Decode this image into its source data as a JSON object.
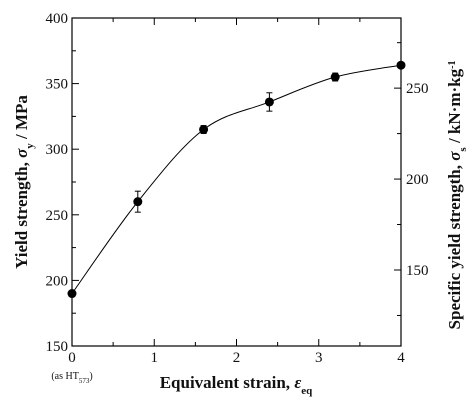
{
  "chart_data": {
    "type": "line",
    "x": [
      0,
      0.8,
      1.6,
      2.4,
      3.2,
      4.0
    ],
    "y": [
      190,
      260,
      315,
      336,
      355,
      364
    ],
    "y_error": [
      0,
      8,
      3,
      7,
      3,
      0
    ],
    "xlim": [
      0,
      4
    ],
    "ylim": [
      150,
      400
    ],
    "x_ticks": [
      "0",
      "1",
      "2",
      "3",
      "4"
    ],
    "y_ticks": [
      "150",
      "200",
      "250",
      "300",
      "350",
      "400"
    ],
    "y2_ticks": [
      "150",
      "200",
      "250"
    ],
    "y2_tick_values": [
      150,
      200,
      250
    ],
    "y2_per_y": 0.7214,
    "x_tick_note": "(as HT",
    "x_tick_note_sub": "573",
    "x_tick_note_end": ")",
    "xlabel": "Equivalent strain, ",
    "xlabel_sym": "ε",
    "xlabel_sub": "eq",
    "ylabel": "Yield strength, ",
    "ylabel_sym": "σ",
    "ylabel_sub": "y",
    "ylabel_unit": " / MPa",
    "y2label": "Specific yield strength, ",
    "y2label_sym": "σ",
    "y2label_sub": "s",
    "y2label_unit": " / kN·m·kg",
    "y2label_sup": "-1",
    "grid": false,
    "legend": "none",
    "series_color": "#000000"
  }
}
